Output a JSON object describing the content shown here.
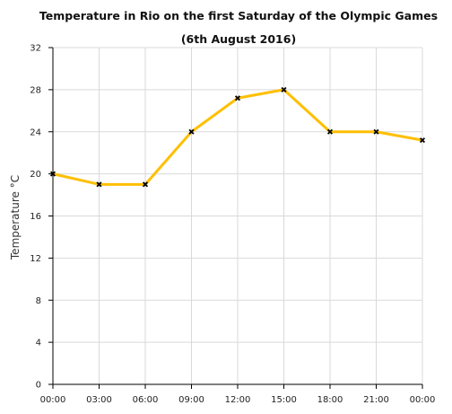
{
  "chart_data": {
    "type": "line",
    "title": "Temperature in Rio on the first Saturday of the Olympic Games",
    "subtitle": "(6th August 2016)",
    "xlabel": "",
    "ylabel": "Temperature °C",
    "categories": [
      "00:00",
      "03:00",
      "06:00",
      "09:00",
      "12:00",
      "15:00",
      "18:00",
      "21:00",
      "00:00"
    ],
    "series": [
      {
        "values": [
          20,
          19,
          19,
          24,
          27.2,
          28,
          24,
          24,
          23.2
        ]
      }
    ],
    "ylim": [
      0,
      32
    ],
    "yticks": [
      "0",
      "4",
      "8",
      "12",
      "16",
      "20",
      "24",
      "28",
      "32"
    ],
    "grid": true,
    "legend": "none",
    "colors": {
      "line": "#ffbf00",
      "marker": "#000000",
      "grid": "#d9d9d9"
    }
  }
}
